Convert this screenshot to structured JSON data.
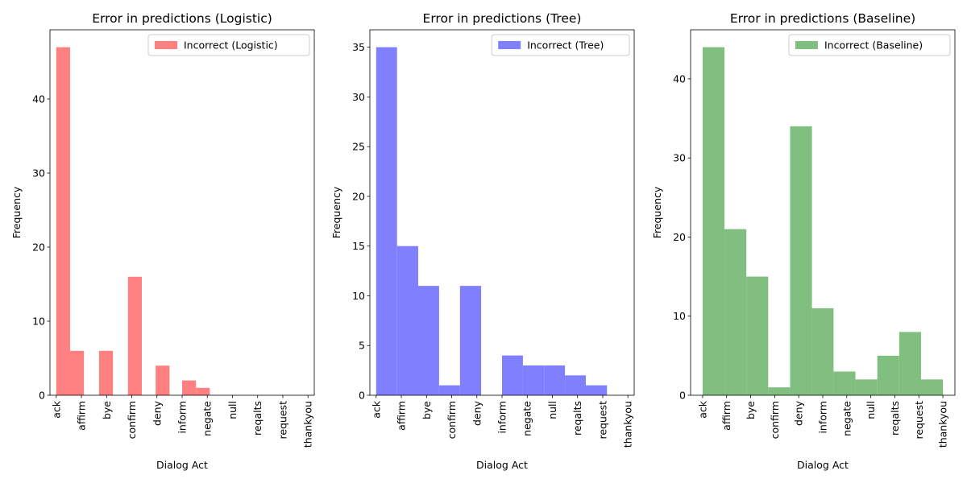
{
  "chart_data": [
    {
      "type": "bar",
      "title": "Error in predictions (Logistic)",
      "xlabel": "Dialog Act",
      "ylabel": "Frequency",
      "color": "#ff8080",
      "ylim": [
        0,
        49.35
      ],
      "yticks": [
        0,
        10,
        20,
        30,
        40
      ],
      "xlim": [
        -0.25,
        10.25
      ],
      "tick_labels": [
        "ack",
        "affirm",
        "bye",
        "confirm",
        "deny",
        "inform",
        "negate",
        "null",
        "reqalts",
        "request",
        "thankyou"
      ],
      "bins": [
        {
          "x0": 0.0,
          "x1": 0.55,
          "value": 47
        },
        {
          "x0": 0.55,
          "x1": 1.1,
          "value": 6
        },
        {
          "x0": 1.7,
          "x1": 2.25,
          "value": 6
        },
        {
          "x0": 2.85,
          "x1": 3.4,
          "value": 16
        },
        {
          "x0": 3.95,
          "x1": 4.5,
          "value": 4
        },
        {
          "x0": 5.0,
          "x1": 5.55,
          "value": 2
        },
        {
          "x0": 5.55,
          "x1": 6.1,
          "value": 1
        }
      ],
      "legend": {
        "label": "Incorrect (Logistic)",
        "position": "top-right"
      }
    },
    {
      "type": "bar",
      "title": "Error in predictions (Tree)",
      "xlabel": "Dialog Act",
      "ylabel": "Frequency",
      "color": "#8080ff",
      "ylim": [
        0,
        36.75
      ],
      "yticks": [
        0,
        5,
        10,
        15,
        20,
        25,
        30,
        35
      ],
      "xlim": [
        -0.25,
        10.25
      ],
      "tick_labels": [
        "ack",
        "affirm",
        "bye",
        "confirm",
        "deny",
        "inform",
        "negate",
        "null",
        "reqalts",
        "request",
        "thankyou"
      ],
      "bins": [
        {
          "x0": 0.0,
          "x1": 0.83,
          "value": 35
        },
        {
          "x0": 0.83,
          "x1": 1.67,
          "value": 15
        },
        {
          "x0": 1.67,
          "x1": 2.5,
          "value": 11
        },
        {
          "x0": 2.5,
          "x1": 3.33,
          "value": 1
        },
        {
          "x0": 3.33,
          "x1": 4.17,
          "value": 11
        },
        {
          "x0": 5.0,
          "x1": 5.83,
          "value": 4
        },
        {
          "x0": 5.83,
          "x1": 6.67,
          "value": 3
        },
        {
          "x0": 6.67,
          "x1": 7.5,
          "value": 3
        },
        {
          "x0": 7.5,
          "x1": 8.33,
          "value": 2
        },
        {
          "x0": 8.33,
          "x1": 9.17,
          "value": 1
        }
      ],
      "legend": {
        "label": "Incorrect (Tree)",
        "position": "top-right"
      }
    },
    {
      "type": "bar",
      "title": "Error in predictions (Baseline)",
      "xlabel": "Dialog Act",
      "ylabel": "Frequency",
      "color": "#80bf80",
      "ylim": [
        0,
        46.2
      ],
      "yticks": [
        0,
        10,
        20,
        30,
        40
      ],
      "xlim": [
        -0.5,
        10.5
      ],
      "tick_labels": [
        "ack",
        "affirm",
        "bye",
        "confirm",
        "deny",
        "inform",
        "negate",
        "null",
        "reqalts",
        "request",
        "thankyou"
      ],
      "bins": [
        {
          "x0": 0.0,
          "x1": 0.91,
          "value": 44
        },
        {
          "x0": 0.91,
          "x1": 1.82,
          "value": 21
        },
        {
          "x0": 1.82,
          "x1": 2.73,
          "value": 15
        },
        {
          "x0": 2.73,
          "x1": 3.64,
          "value": 1
        },
        {
          "x0": 3.64,
          "x1": 4.55,
          "value": 34
        },
        {
          "x0": 4.55,
          "x1": 5.45,
          "value": 11
        },
        {
          "x0": 5.45,
          "x1": 6.36,
          "value": 3
        },
        {
          "x0": 6.36,
          "x1": 7.27,
          "value": 2
        },
        {
          "x0": 7.27,
          "x1": 8.18,
          "value": 5
        },
        {
          "x0": 8.18,
          "x1": 9.09,
          "value": 8
        },
        {
          "x0": 9.09,
          "x1": 10.0,
          "value": 2
        }
      ],
      "legend": {
        "label": "Incorrect (Baseline)",
        "position": "top-right"
      }
    }
  ]
}
